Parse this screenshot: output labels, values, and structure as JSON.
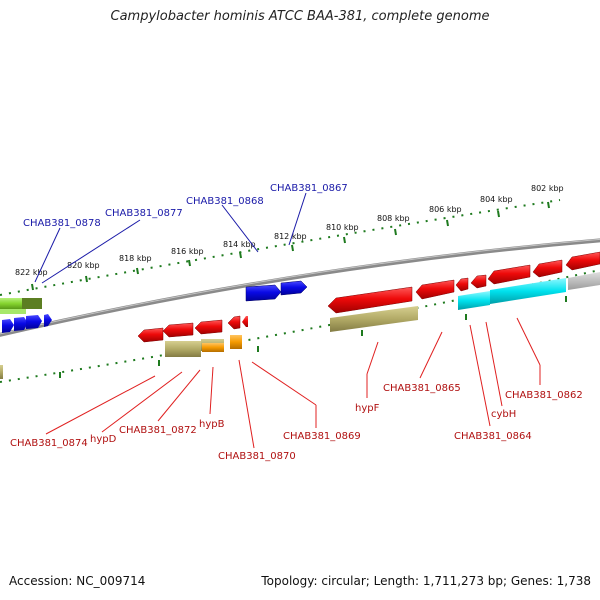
{
  "title": "Campylobacter hominis ATCC BAA-381, complete genome",
  "footer": {
    "accession": "Accession: NC_009714",
    "summary": "Topology: circular; Length: 1,711,273 bp; Genes: 1,738"
  },
  "scale_labels": [
    "822 kbp",
    "820 kbp",
    "818 kbp",
    "816 kbp",
    "814 kbp",
    "812 kbp",
    "810 kbp",
    "808 kbp",
    "806 kbp",
    "804 kbp",
    "802 kbp"
  ],
  "upper_labels": [
    "CHAB381_0878",
    "CHAB381_0877",
    "CHAB381_0868",
    "CHAB381_0867"
  ],
  "lower_labels": [
    "CHAB381_0874",
    "hypD",
    "CHAB381_0872",
    "hypB",
    "CHAB381_0870",
    "CHAB381_0869",
    "hypF",
    "CHAB381_0865",
    "CHAB381_0864",
    "cybH",
    "CHAB381_0862"
  ],
  "colors": {
    "plus_strand_gene": "#0a0ae6",
    "minus_strand_gene": "#e60a0a",
    "backbone": "#8a8a8a",
    "cyan_feature": "#00e5ee",
    "olive_feature": "#b5ae6c",
    "green_feature": "#8fd93a",
    "orange_feature": "#f59a00",
    "scale_tick": "#1e7a1e"
  }
}
